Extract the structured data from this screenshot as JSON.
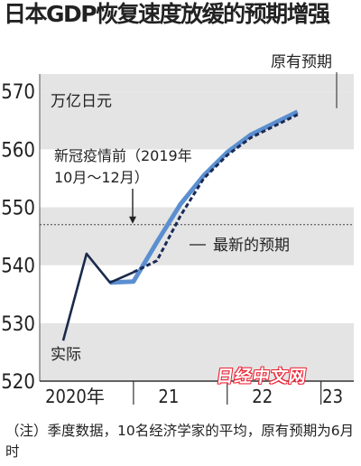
{
  "chart_data": {
    "type": "line",
    "title": "日本GDP恢复速度放缓的预期增强",
    "unit_label": "万亿日元",
    "x_tick_labels": [
      {
        "label": "2020年",
        "x": 2020.375
      },
      {
        "label": "21",
        "x": 2021.375
      },
      {
        "label": "22",
        "x": 2022.375
      },
      {
        "label": "23",
        "x": 2023.125
      }
    ],
    "x_range": [
      2020.0,
      2023.35
    ],
    "y_ticks": [
      520,
      530,
      540,
      550,
      560,
      570
    ],
    "ylim": [
      520,
      573
    ],
    "reference_line": {
      "value": 547,
      "label_lines": [
        "新冠疫情前（2019年",
        "10月～12月）"
      ]
    },
    "series": [
      {
        "name": "实际",
        "color": "#1a2a4a",
        "style": "solid",
        "points": [
          [
            2020.25,
            527.0
          ],
          [
            2020.5,
            542.0
          ],
          [
            2020.75,
            537.0
          ],
          [
            2021.0,
            538.8
          ]
        ]
      },
      {
        "name": "原有预期",
        "color": "#5b8fd0",
        "style": "solid-thick",
        "points": [
          [
            2020.75,
            537.0
          ],
          [
            2021.0,
            537.2
          ],
          [
            2021.25,
            544.0
          ],
          [
            2021.5,
            550.5
          ],
          [
            2021.75,
            555.5
          ],
          [
            2022.0,
            559.5
          ],
          [
            2022.25,
            562.5
          ],
          [
            2022.5,
            564.5
          ],
          [
            2022.75,
            566.5
          ]
        ]
      },
      {
        "name": "最新的预期",
        "color": "#1a2a55",
        "style": "dashed",
        "points": [
          [
            2021.0,
            538.8
          ],
          [
            2021.25,
            540.8
          ],
          [
            2021.5,
            548.5
          ],
          [
            2021.75,
            555.0
          ],
          [
            2022.0,
            559.0
          ],
          [
            2022.25,
            562.0
          ],
          [
            2022.5,
            564.0
          ],
          [
            2022.75,
            566.0
          ]
        ]
      }
    ],
    "grid_bands": "alternating-gray",
    "note": "（注）季度数据，10名经济学家的平均，原有预期为6月时"
  },
  "watermark": "日经中文网"
}
